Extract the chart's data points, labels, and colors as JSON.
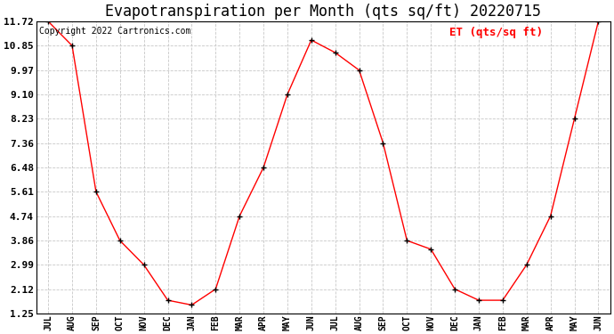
{
  "title": "Evapotranspiration per Month (qts sq/ft) 20220715",
  "copyright": "Copyright 2022 Cartronics.com",
  "legend_label": "ET (qts/sq ft)",
  "months": [
    "JUL",
    "AUG",
    "SEP",
    "OCT",
    "NOV",
    "DEC",
    "JAN",
    "FEB",
    "MAR",
    "APR",
    "MAY",
    "JUN",
    "JUL",
    "AUG",
    "SEP",
    "OCT",
    "NOV",
    "DEC",
    "JAN",
    "FEB",
    "MAR",
    "APR",
    "MAY",
    "JUN"
  ],
  "values": [
    11.72,
    10.85,
    5.61,
    3.86,
    2.99,
    1.72,
    1.55,
    2.12,
    4.74,
    6.48,
    9.1,
    11.05,
    10.6,
    9.97,
    7.36,
    3.86,
    3.55,
    2.12,
    1.72,
    1.72,
    2.99,
    4.74,
    8.23,
    11.72
  ],
  "yticks": [
    1.25,
    2.12,
    2.99,
    3.86,
    4.74,
    5.61,
    6.48,
    7.36,
    8.23,
    9.1,
    9.97,
    10.85,
    11.72
  ],
  "ylim": [
    1.25,
    11.72
  ],
  "line_color": "red",
  "marker": "+",
  "marker_color": "black",
  "grid_color": "#c8c8c8",
  "bg_color": "#ffffff",
  "title_fontsize": 12,
  "copyright_fontsize": 7,
  "legend_fontsize": 9,
  "axis_label_fontsize": 7,
  "ytick_fontsize": 8
}
